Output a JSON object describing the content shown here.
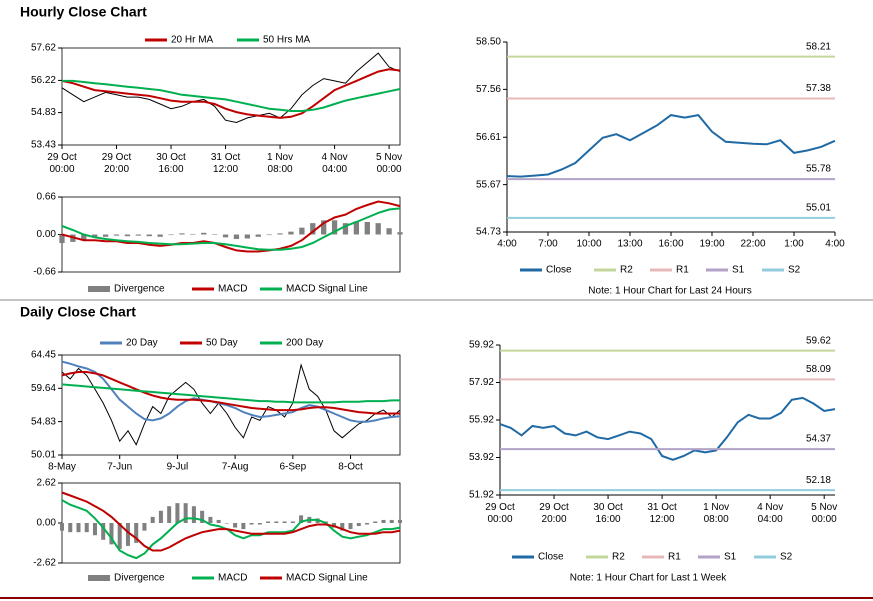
{
  "headings": [
    "Hourly Close Chart",
    "Daily Close Chart"
  ],
  "chart_data": [
    {
      "type": "line",
      "categories": [
        "29 Oct\n00:00",
        null,
        null,
        null,
        null,
        "29 Oct\n20:00",
        null,
        null,
        null,
        null,
        "30 Oct\n16:00",
        null,
        null,
        null,
        null,
        "31 Oct\n12:00",
        null,
        null,
        null,
        null,
        "1 Nov\n08:00",
        null,
        null,
        null,
        null,
        "4 Nov\n04:00",
        null,
        null,
        null,
        null,
        "5 Nov\n00:00",
        null
      ],
      "ylim": [
        53.43,
        57.62
      ],
      "yticks": [
        57.62,
        56.22,
        54.83,
        53.43
      ],
      "series": [
        {
          "color": "#000000",
          "values": [
            55.9,
            55.6,
            55.3,
            55.5,
            55.7,
            55.6,
            55.5,
            55.5,
            55.4,
            55.2,
            55.0,
            55.1,
            55.3,
            55.4,
            55.1,
            54.5,
            54.4,
            54.6,
            54.7,
            54.8,
            54.6,
            55.0,
            55.6,
            56.0,
            56.3,
            56.2,
            56.1,
            56.6,
            57.0,
            57.4,
            56.8,
            56.6
          ]
        },
        {
          "name": "20 Hr MA",
          "color": "#c00000",
          "values": [
            56.2,
            56.1,
            55.95,
            55.8,
            55.75,
            55.7,
            55.65,
            55.6,
            55.55,
            55.45,
            55.35,
            55.3,
            55.3,
            55.3,
            55.2,
            55.0,
            54.85,
            54.75,
            54.7,
            54.65,
            54.6,
            54.65,
            54.8,
            55.1,
            55.45,
            55.8,
            56.0,
            56.2,
            56.4,
            56.6,
            56.7,
            56.65
          ]
        },
        {
          "name": "50 Hrs MA",
          "color": "#00b050",
          "values": [
            56.2,
            56.2,
            56.15,
            56.1,
            56.05,
            56.0,
            55.95,
            55.9,
            55.85,
            55.8,
            55.7,
            55.6,
            55.55,
            55.5,
            55.45,
            55.4,
            55.3,
            55.2,
            55.1,
            55.0,
            54.95,
            54.9,
            54.9,
            54.95,
            55.05,
            55.2,
            55.35,
            55.45,
            55.55,
            55.65,
            55.75,
            55.85
          ]
        }
      ]
    },
    {
      "type": "line",
      "ylim": [
        -0.66,
        0.66
      ],
      "yticks": [
        0.66,
        {
          "value": 0,
          "label": "0.00"
        },
        -0.66
      ],
      "series": [
        {
          "name": "Divergence",
          "type": "bar",
          "color": "#808080",
          "values": [
            -0.15,
            -0.13,
            -0.1,
            -0.05,
            -0.04,
            -0.02,
            -0.03,
            -0.02,
            -0.03,
            -0.04,
            -0.01,
            0.02,
            0.01,
            0.03,
            0,
            -0.05,
            -0.08,
            -0.07,
            -0.04,
            -0.01,
            0.02,
            0.05,
            0.12,
            0.2,
            0.25,
            0.25,
            0.2,
            0.23,
            0.22,
            0.2,
            0.11,
            0.04
          ]
        },
        {
          "name": "MACD",
          "color": "#c00000",
          "values": [
            0,
            -0.05,
            -0.1,
            -0.1,
            -0.12,
            -0.12,
            -0.15,
            -0.15,
            -0.18,
            -0.2,
            -0.18,
            -0.15,
            -0.15,
            -0.12,
            -0.15,
            -0.22,
            -0.28,
            -0.3,
            -0.3,
            -0.28,
            -0.25,
            -0.2,
            -0.1,
            0.05,
            0.2,
            0.3,
            0.35,
            0.45,
            0.52,
            0.58,
            0.55,
            0.5
          ]
        },
        {
          "name": "MACD Signal Line",
          "color": "#00b050",
          "values": [
            0.15,
            0.08,
            0,
            -0.05,
            -0.08,
            -0.1,
            -0.12,
            -0.13,
            -0.15,
            -0.16,
            -0.17,
            -0.17,
            -0.16,
            -0.15,
            -0.15,
            -0.17,
            -0.2,
            -0.23,
            -0.26,
            -0.27,
            -0.27,
            -0.25,
            -0.22,
            -0.15,
            -0.05,
            0.05,
            0.15,
            0.22,
            0.3,
            0.38,
            0.44,
            0.46
          ]
        }
      ]
    },
    {
      "type": "line",
      "categories": [
        "4:00",
        null,
        null,
        "7:00",
        null,
        null,
        "10:00",
        null,
        null,
        "13:00",
        null,
        null,
        "16:00",
        null,
        null,
        "19:00",
        null,
        null,
        "22:00",
        null,
        null,
        "1:00",
        null,
        null,
        "4:00"
      ],
      "ylim": [
        54.73,
        58.5
      ],
      "yticks": [
        {
          "value": 58.5,
          "label": "58.50"
        },
        57.56,
        56.61,
        55.67,
        54.73
      ],
      "note": "Note: 1 Hour Chart for Last 24 Hours",
      "series": [
        {
          "name": "Close",
          "color": "#1f6aa5",
          "values": [
            55.84,
            55.83,
            55.85,
            55.87,
            55.97,
            56.1,
            56.35,
            56.6,
            56.67,
            56.55,
            56.7,
            56.85,
            57.05,
            57.0,
            57.05,
            56.72,
            56.52,
            56.5,
            56.48,
            56.47,
            56.55,
            56.3,
            56.35,
            56.42,
            56.54
          ]
        },
        {
          "name": "R2",
          "type": "level",
          "color": "#c4d79b",
          "value": 58.21
        },
        {
          "name": "R1",
          "type": "level",
          "color": "#e6b9b8",
          "value": 57.38
        },
        {
          "name": "S1",
          "type": "level",
          "color": "#b3a2c7",
          "value": 55.78
        },
        {
          "name": "S2",
          "type": "level",
          "color": "#93cddd",
          "value": 55.01
        }
      ]
    },
    {
      "type": "line",
      "categories": [
        "8-May",
        null,
        null,
        null,
        null,
        null,
        null,
        "7-Jun",
        null,
        null,
        null,
        null,
        null,
        null,
        "9-Jul",
        null,
        null,
        null,
        null,
        null,
        null,
        "7-Aug",
        null,
        null,
        null,
        null,
        null,
        null,
        "6-Sep",
        null,
        null,
        null,
        null,
        null,
        null,
        "8-Oct",
        null,
        null,
        null,
        null,
        null,
        null
      ],
      "ylim": [
        50.01,
        64.45
      ],
      "yticks": [
        64.45,
        59.64,
        54.83,
        50.01
      ],
      "series": [
        {
          "color": "#000000",
          "values": [
            62,
            61,
            62.5,
            61.5,
            59.5,
            57.5,
            55,
            52,
            53.5,
            51.5,
            54.5,
            57,
            56,
            58.5,
            59.5,
            60.5,
            59.5,
            57.5,
            56,
            57.5,
            56,
            54,
            52.5,
            55.5,
            55,
            57,
            56.5,
            55.5,
            57.5,
            63,
            59.5,
            58.5,
            56.5,
            53.5,
            52.5,
            53.5,
            54.5,
            55,
            56,
            56.5,
            55.5,
            56.5
          ]
        },
        {
          "name": "20 Day",
          "color": "#4f81bd",
          "values": [
            63.5,
            63.2,
            62.8,
            62.5,
            62,
            61,
            59.5,
            58,
            57,
            56,
            55.2,
            55,
            55.3,
            56,
            57,
            57.8,
            58.2,
            58,
            57.8,
            57.5,
            57.2,
            56.8,
            56.2,
            55.8,
            55.5,
            55.6,
            55.8,
            56,
            56.2,
            56.8,
            57.2,
            57,
            56.5,
            56,
            55.5,
            55,
            54.8,
            54.8,
            55,
            55.3,
            55.5,
            55.6
          ]
        },
        {
          "name": "50 Day",
          "color": "#c00000",
          "values": [
            61.5,
            61.8,
            62,
            62,
            61.8,
            61.5,
            61,
            60.5,
            60,
            59.5,
            59,
            58.6,
            58.3,
            58.1,
            58,
            58,
            58,
            57.9,
            57.8,
            57.6,
            57.4,
            57.2,
            57,
            56.8,
            56.7,
            56.6,
            56.5,
            56.5,
            56.5,
            56.6,
            56.8,
            56.9,
            56.9,
            56.8,
            56.6,
            56.4,
            56.2,
            56.1,
            56,
            56,
            56,
            56
          ]
        },
        {
          "name": "200 Day",
          "color": "#00b050",
          "values": [
            60.2,
            60.1,
            60,
            59.9,
            59.8,
            59.7,
            59.6,
            59.5,
            59.4,
            59.3,
            59.2,
            59.1,
            59,
            58.9,
            58.8,
            58.7,
            58.6,
            58.5,
            58.4,
            58.3,
            58.2,
            58.1,
            58,
            57.9,
            57.8,
            57.8,
            57.7,
            57.7,
            57.6,
            57.6,
            57.6,
            57.6,
            57.6,
            57.6,
            57.7,
            57.7,
            57.7,
            57.8,
            57.8,
            57.8,
            57.9,
            57.9
          ]
        }
      ]
    },
    {
      "type": "line",
      "ylim": [
        -2.62,
        2.62
      ],
      "yticks": [
        2.62,
        {
          "value": 0,
          "label": "0.00"
        },
        -2.62
      ],
      "series": [
        {
          "name": "Divergence",
          "type": "bar",
          "color": "#808080",
          "values": [
            -0.5,
            -0.6,
            -0.6,
            -0.6,
            -0.8,
            -1.1,
            -1.4,
            -1.7,
            -1.5,
            -1.3,
            -0.5,
            0.4,
            0.8,
            1.1,
            1.3,
            1.3,
            1.1,
            0.8,
            0.4,
            0.2,
            0,
            -0.3,
            -0.4,
            -0.1,
            -0.1,
            0.1,
            0.1,
            0.1,
            0.1,
            0.5,
            0.4,
            0.3,
            0.1,
            -0.3,
            -0.5,
            -0.4,
            -0.2,
            -0.1,
            0.1,
            0.2,
            0.2,
            0.2
          ]
        },
        {
          "name": "MACD",
          "color": "#00b050",
          "values": [
            1.5,
            1.2,
            1,
            0.8,
            0.3,
            -0.3,
            -1,
            -1.8,
            -2.1,
            -2.3,
            -2,
            -1.4,
            -1,
            -0.5,
            0,
            0.3,
            0.3,
            0.2,
            -0.1,
            -0.2,
            -0.4,
            -0.8,
            -1,
            -0.8,
            -0.8,
            -0.6,
            -0.6,
            -0.6,
            -0.5,
            0.1,
            0.2,
            0.2,
            0,
            -0.5,
            -0.9,
            -1,
            -0.9,
            -0.8,
            -0.6,
            -0.4,
            -0.4,
            -0.3
          ]
        },
        {
          "name": "MACD Signal Line",
          "color": "#c00000",
          "values": [
            2,
            1.8,
            1.6,
            1.4,
            1.1,
            0.8,
            0.4,
            -0.1,
            -0.6,
            -1,
            -1.5,
            -1.8,
            -1.8,
            -1.6,
            -1.3,
            -1,
            -0.8,
            -0.6,
            -0.5,
            -0.4,
            -0.4,
            -0.5,
            -0.6,
            -0.7,
            -0.7,
            -0.7,
            -0.7,
            -0.7,
            -0.6,
            -0.4,
            -0.2,
            -0.1,
            -0.1,
            -0.2,
            -0.4,
            -0.6,
            -0.7,
            -0.7,
            -0.7,
            -0.6,
            -0.6,
            -0.5
          ]
        }
      ]
    },
    {
      "type": "line",
      "categories": [
        "29 Oct\n00:00",
        null,
        null,
        null,
        null,
        "29 Oct\n20:00",
        null,
        null,
        null,
        null,
        "30 Oct\n16:00",
        null,
        null,
        null,
        null,
        "31 Oct\n12:00",
        null,
        null,
        null,
        null,
        "1 Nov\n08:00",
        null,
        null,
        null,
        null,
        "4 Nov\n04:00",
        null,
        null,
        null,
        null,
        "5 Nov\n00:00",
        null
      ],
      "ylim": [
        51.92,
        59.92
      ],
      "yticks": [
        59.92,
        57.92,
        55.92,
        53.92,
        51.92
      ],
      "note": "Note: 1 Hour Chart for Last 1 Week",
      "series": [
        {
          "name": "Close",
          "color": "#1f6aa5",
          "values": [
            55.7,
            55.5,
            55.1,
            55.6,
            55.5,
            55.6,
            55.2,
            55.1,
            55.3,
            55.0,
            54.9,
            55.1,
            55.3,
            55.2,
            54.9,
            54.0,
            53.8,
            54.0,
            54.3,
            54.2,
            54.3,
            55.0,
            55.8,
            56.2,
            56.0,
            56.0,
            56.3,
            57.0,
            57.1,
            56.8,
            56.4,
            56.5
          ]
        },
        {
          "name": "R2",
          "type": "level",
          "color": "#c4d79b",
          "value": 59.62
        },
        {
          "name": "R1",
          "type": "level",
          "color": "#e6b9b8",
          "value": 58.09
        },
        {
          "name": "S1",
          "type": "level",
          "color": "#b3a2c7",
          "value": 54.37
        },
        {
          "name": "S2",
          "type": "level",
          "color": "#93cddd",
          "value": 52.18
        }
      ]
    }
  ]
}
